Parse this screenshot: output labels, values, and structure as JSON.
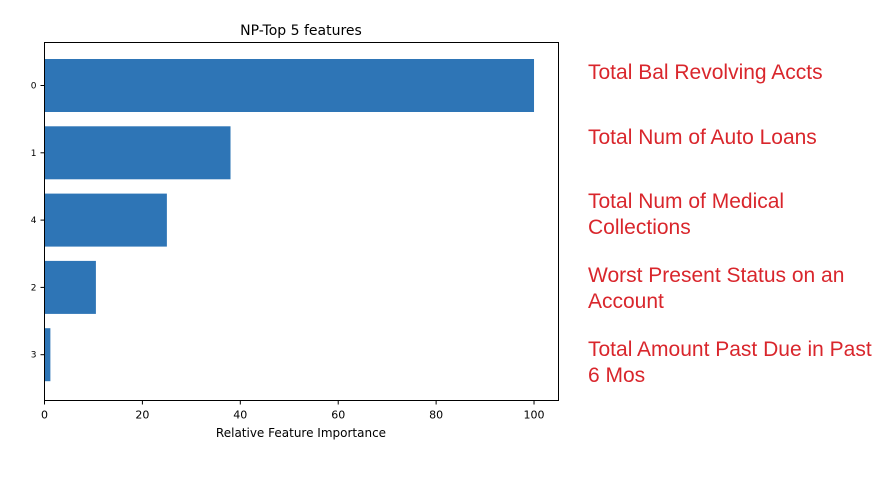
{
  "chart_data": {
    "type": "bar",
    "orientation": "horizontal",
    "title": "NP-Top 5 features",
    "xlabel": "Relative Feature Importance",
    "ylabel": "",
    "categories": [
      "0",
      "1",
      "4",
      "2",
      "3"
    ],
    "values": [
      100,
      38,
      25,
      10.5,
      1.2
    ],
    "xlim": [
      0,
      105
    ],
    "xticks": [
      0,
      20,
      40,
      60,
      80,
      100
    ],
    "bar_color": "#2e75b6",
    "grid": false,
    "annotation_color": "#d9262c",
    "annotations": [
      "Total Bal Revolving Accts",
      "Total Num of Auto Loans",
      "Total Num of Medical Collections",
      "Worst Present Status on an Account",
      "Total Amount Past Due in Past 6 Mos"
    ]
  }
}
